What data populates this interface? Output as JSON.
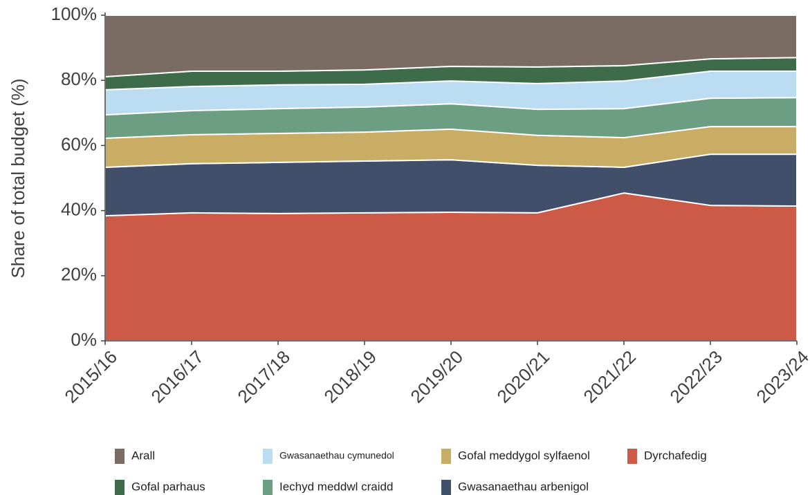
{
  "chart_data": {
    "type": "stacked_area",
    "y_label": "Share of total budget (%)",
    "categories": [
      "2015/16",
      "2016/17",
      "2017/18",
      "2018/19",
      "2019/20",
      "2020/21",
      "2021/22",
      "2022/23",
      "2023/24"
    ],
    "ylim": [
      0,
      100
    ],
    "yticks": [
      {
        "value": 0,
        "label": "0%"
      },
      {
        "value": 20,
        "label": "20%"
      },
      {
        "value": 40,
        "label": "40%"
      },
      {
        "value": 60,
        "label": "60%"
      },
      {
        "value": 80,
        "label": "80%"
      },
      {
        "value": 100,
        "label": "100%"
      }
    ],
    "series": [
      {
        "name": "Dyrchafedig",
        "color": "#cd5a46",
        "values": [
          38.4,
          39.3,
          39.1,
          39.3,
          39.5,
          39.3,
          45.4,
          41.6,
          41.4
        ]
      },
      {
        "name": "Gwasanaethau arbenigol",
        "color": "#414f6b",
        "values": [
          14.9,
          15.1,
          15.7,
          15.9,
          16.1,
          14.6,
          7.9,
          15.7,
          15.9
        ]
      },
      {
        "name": "Gofal meddygol sylfaenol",
        "color": "#c9ad65",
        "values": [
          8.9,
          8.9,
          8.9,
          8.9,
          9.4,
          9.2,
          9.1,
          8.5,
          8.5
        ]
      },
      {
        "name": "Iechyd meddwl craidd",
        "color": "#6b9e82",
        "values": [
          7.2,
          7.4,
          7.6,
          7.7,
          7.8,
          8.0,
          8.9,
          8.7,
          8.9
        ]
      },
      {
        "name": "Gwasanaethau cymunedol",
        "color": "#bcdcf2",
        "values": [
          7.7,
          7.4,
          7.3,
          7.0,
          7.0,
          7.9,
          8.5,
          8.3,
          8.1
        ]
      },
      {
        "name": "Gofal parhaus",
        "color": "#3e6b4a",
        "values": [
          4.0,
          4.7,
          4.2,
          4.4,
          4.5,
          5.1,
          4.7,
          3.8,
          4.2
        ]
      },
      {
        "name": "Arall",
        "color": "#7a6c62",
        "values": [
          18.9,
          17.2,
          17.2,
          16.8,
          15.7,
          15.9,
          15.5,
          13.4,
          13.0
        ]
      }
    ]
  }
}
